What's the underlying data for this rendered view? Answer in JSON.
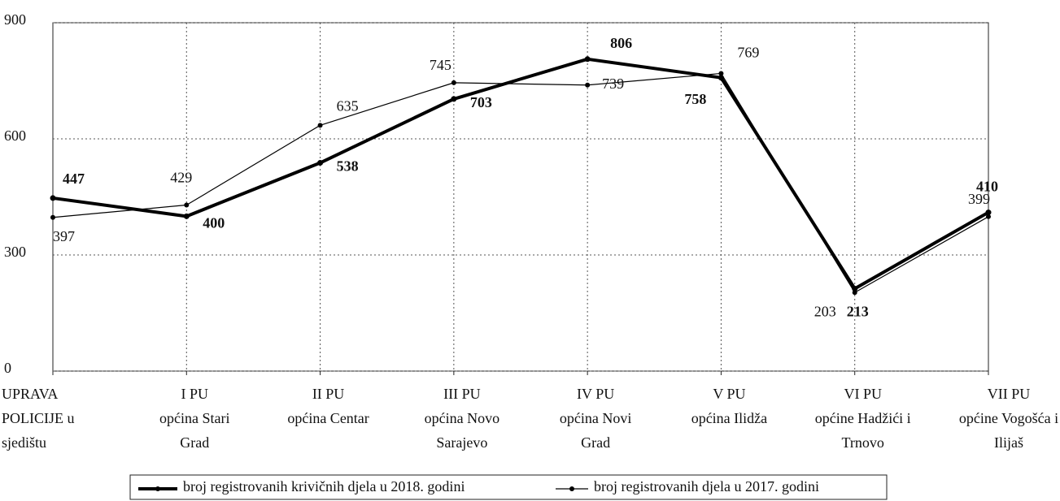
{
  "chart_data": {
    "type": "line",
    "categories": [
      [
        "UPRAVA",
        "POLICIJE u",
        "sjedištu"
      ],
      [
        "I PU",
        "općina Stari",
        "Grad"
      ],
      [
        "II PU",
        "općina Centar"
      ],
      [
        "III PU",
        "općina Novo",
        "Sarajevo"
      ],
      [
        "IV PU",
        "općina Novi",
        "Grad"
      ],
      [
        "V PU",
        "općina Ilidža"
      ],
      [
        "VI PU",
        "općine Hadžići i",
        "Trnovo"
      ],
      [
        "VII PU",
        "općine Vogošća i",
        "Ilijaš"
      ]
    ],
    "series": [
      {
        "name": "broj registrovanih krivičnih djela u 2018. godini",
        "color": "#000000",
        "values": [
          447,
          400,
          538,
          703,
          806,
          758,
          213,
          410
        ]
      },
      {
        "name": "broj registrovanih djela u 2017. godini",
        "color": "#000000",
        "values": [
          397,
          429,
          635,
          745,
          739,
          769,
          203,
          399
        ]
      }
    ],
    "ylim": [
      0,
      900
    ],
    "yticks": [
      0,
      300,
      600,
      900
    ],
    "grid": true,
    "legend": "bottom"
  }
}
